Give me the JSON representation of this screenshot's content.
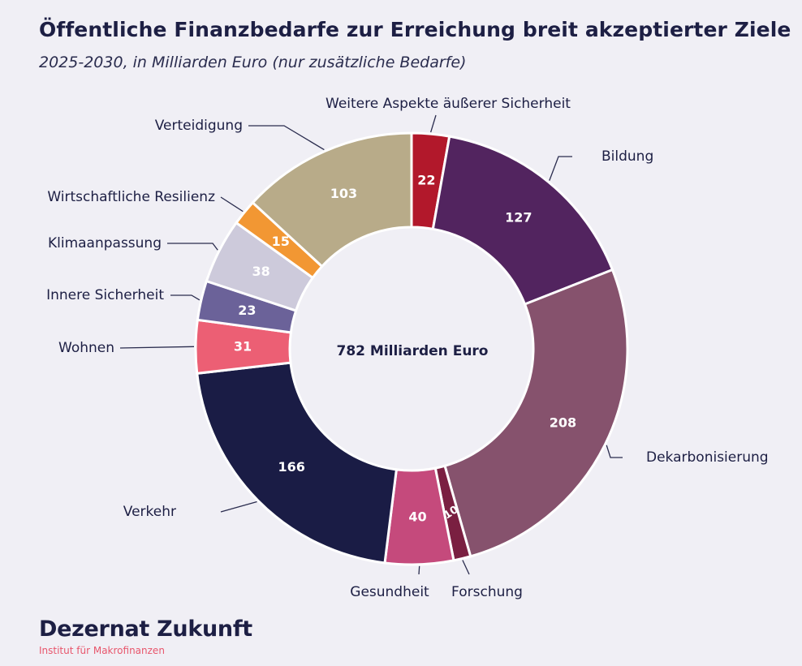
{
  "title": "Öffentliche Finanzbedarfe zur Erreichung breit akzeptierter Ziele",
  "subtitle": "2025-2030, in Milliarden Euro (nur zusätzliche Bedarfe)",
  "center_label": "782 Milliarden Euro",
  "logo": {
    "name": "Dezernat Zukunft",
    "tagline": "Institut für Makrofinanzen"
  },
  "chart_data": {
    "type": "pie",
    "donut": true,
    "unit": "Milliarden Euro",
    "total": 782,
    "slices": [
      {
        "label": "Weitere Aspekte äußerer Sicherheit",
        "value": 22,
        "color": "#b2182b",
        "text_color": "#ffffff"
      },
      {
        "label": "Bildung",
        "value": 127,
        "color": "#52245f",
        "text_color": "#ffffff"
      },
      {
        "label": "Dekarbonisierung",
        "value": 208,
        "color": "#86526d",
        "text_color": "#ffffff"
      },
      {
        "label": "Forschung",
        "value": 10,
        "color": "#7a1f41",
        "text_color": "#ffffff"
      },
      {
        "label": "Gesundheit",
        "value": 40,
        "color": "#c54a7c",
        "text_color": "#ffffff"
      },
      {
        "label": "Verkehr",
        "value": 166,
        "color": "#1a1c45",
        "text_color": "#ffffff"
      },
      {
        "label": "Wohnen",
        "value": 31,
        "color": "#ec5f74",
        "text_color": "#ffffff"
      },
      {
        "label": "Innere Sicherheit",
        "value": 23,
        "color": "#6b6299",
        "text_color": "#ffffff"
      },
      {
        "label": "Klimaanpassung",
        "value": 38,
        "color": "#cdcadb",
        "text_color": "#ffffff"
      },
      {
        "label": "Wirtschaftliche Resilienz",
        "value": 15,
        "color": "#f29733",
        "text_color": "#ffffff"
      },
      {
        "label": "Verteidigung",
        "value": 103,
        "color": "#b8ab89",
        "text_color": "#ffffff"
      }
    ]
  }
}
